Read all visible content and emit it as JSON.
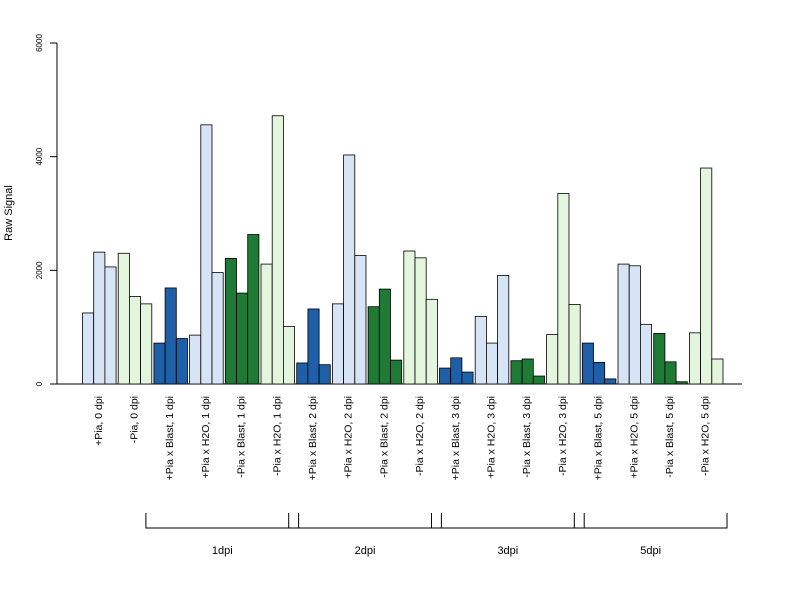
{
  "chart_data": {
    "type": "bar",
    "ylabel": "Raw Signal",
    "xlabel": "",
    "ylim": [
      0,
      6000
    ],
    "yticks": [
      "0",
      "2000",
      "4000",
      "6000"
    ],
    "colors": {
      "light_blue": "#d6e4f5",
      "light_green": "#e3f5dc",
      "dark_blue": "#1f5fa8",
      "dark_green": "#1f7a36"
    },
    "categories": [
      "+Pia, 0 dpi",
      "-Pia, 0 dpi",
      "+Pia x Blast, 1 dpi",
      "+Pia x H2O, 1 dpi",
      "-Pia x Blast, 1 dpi",
      "-Pia x H2O, 1 dpi",
      "+Pia x Blast, 2 dpi",
      "+Pia x H2O, 2 dpi",
      "-Pia x Blast, 2 dpi",
      "-Pia x H2O, 2 dpi",
      "+Pia x Blast, 3 dpi",
      "+Pia x H2O, 3 dpi",
      "-Pia x Blast, 3 dpi",
      "-Pia x H2O, 3 dpi",
      "+Pia x Blast, 5 dpi",
      "+Pia x H2O, 5 dpi",
      "-Pia x Blast, 5 dpi",
      "-Pia x H2O, 5 dpi"
    ],
    "bar_colors": [
      "light_blue",
      "light_green",
      "dark_blue",
      "light_blue",
      "dark_green",
      "light_green",
      "dark_blue",
      "light_blue",
      "dark_green",
      "light_green",
      "dark_blue",
      "light_blue",
      "dark_green",
      "light_green",
      "dark_blue",
      "light_blue",
      "dark_green",
      "light_green"
    ],
    "values": [
      [
        1250,
        2320,
        2060
      ],
      [
        2300,
        1540,
        1410
      ],
      [
        720,
        1690,
        800
      ],
      [
        860,
        4560,
        1960
      ],
      [
        2210,
        1600,
        2630
      ],
      [
        2110,
        4720,
        1010
      ],
      [
        370,
        1320,
        340
      ],
      [
        1410,
        4030,
        2260
      ],
      [
        1360,
        1670,
        420
      ],
      [
        2340,
        2220,
        1490
      ],
      [
        280,
        460,
        210
      ],
      [
        1190,
        720,
        1910
      ],
      [
        410,
        440,
        140
      ],
      [
        870,
        3350,
        1400
      ],
      [
        720,
        380,
        90
      ],
      [
        2110,
        2080,
        1050
      ],
      [
        890,
        390,
        40
      ],
      [
        900,
        3800,
        440
      ]
    ],
    "groups": [
      {
        "label": "1dpi",
        "start": 2,
        "end": 5
      },
      {
        "label": "2dpi",
        "start": 6,
        "end": 9
      },
      {
        "label": "3dpi",
        "start": 10,
        "end": 13
      },
      {
        "label": "5dpi",
        "start": 14,
        "end": 17
      }
    ]
  }
}
